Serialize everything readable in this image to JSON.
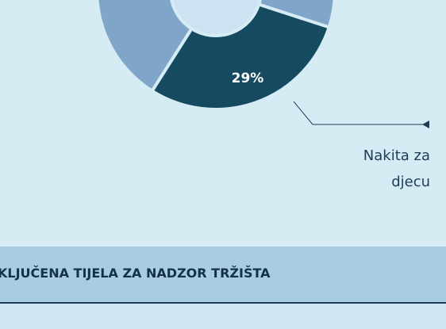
{
  "chart_data": {
    "type": "donut",
    "categories": [
      null,
      "Nakita za djecu",
      null
    ],
    "values": [
      30,
      29,
      41
    ],
    "value_labels": [
      null,
      "29%",
      null
    ],
    "colors": [
      "#7fa6c8",
      "#154a60",
      "#7fa6c8"
    ]
  },
  "banner": {
    "title": "KLJUČENA TIJELA ZA NADZOR TRŽIŠTA"
  }
}
